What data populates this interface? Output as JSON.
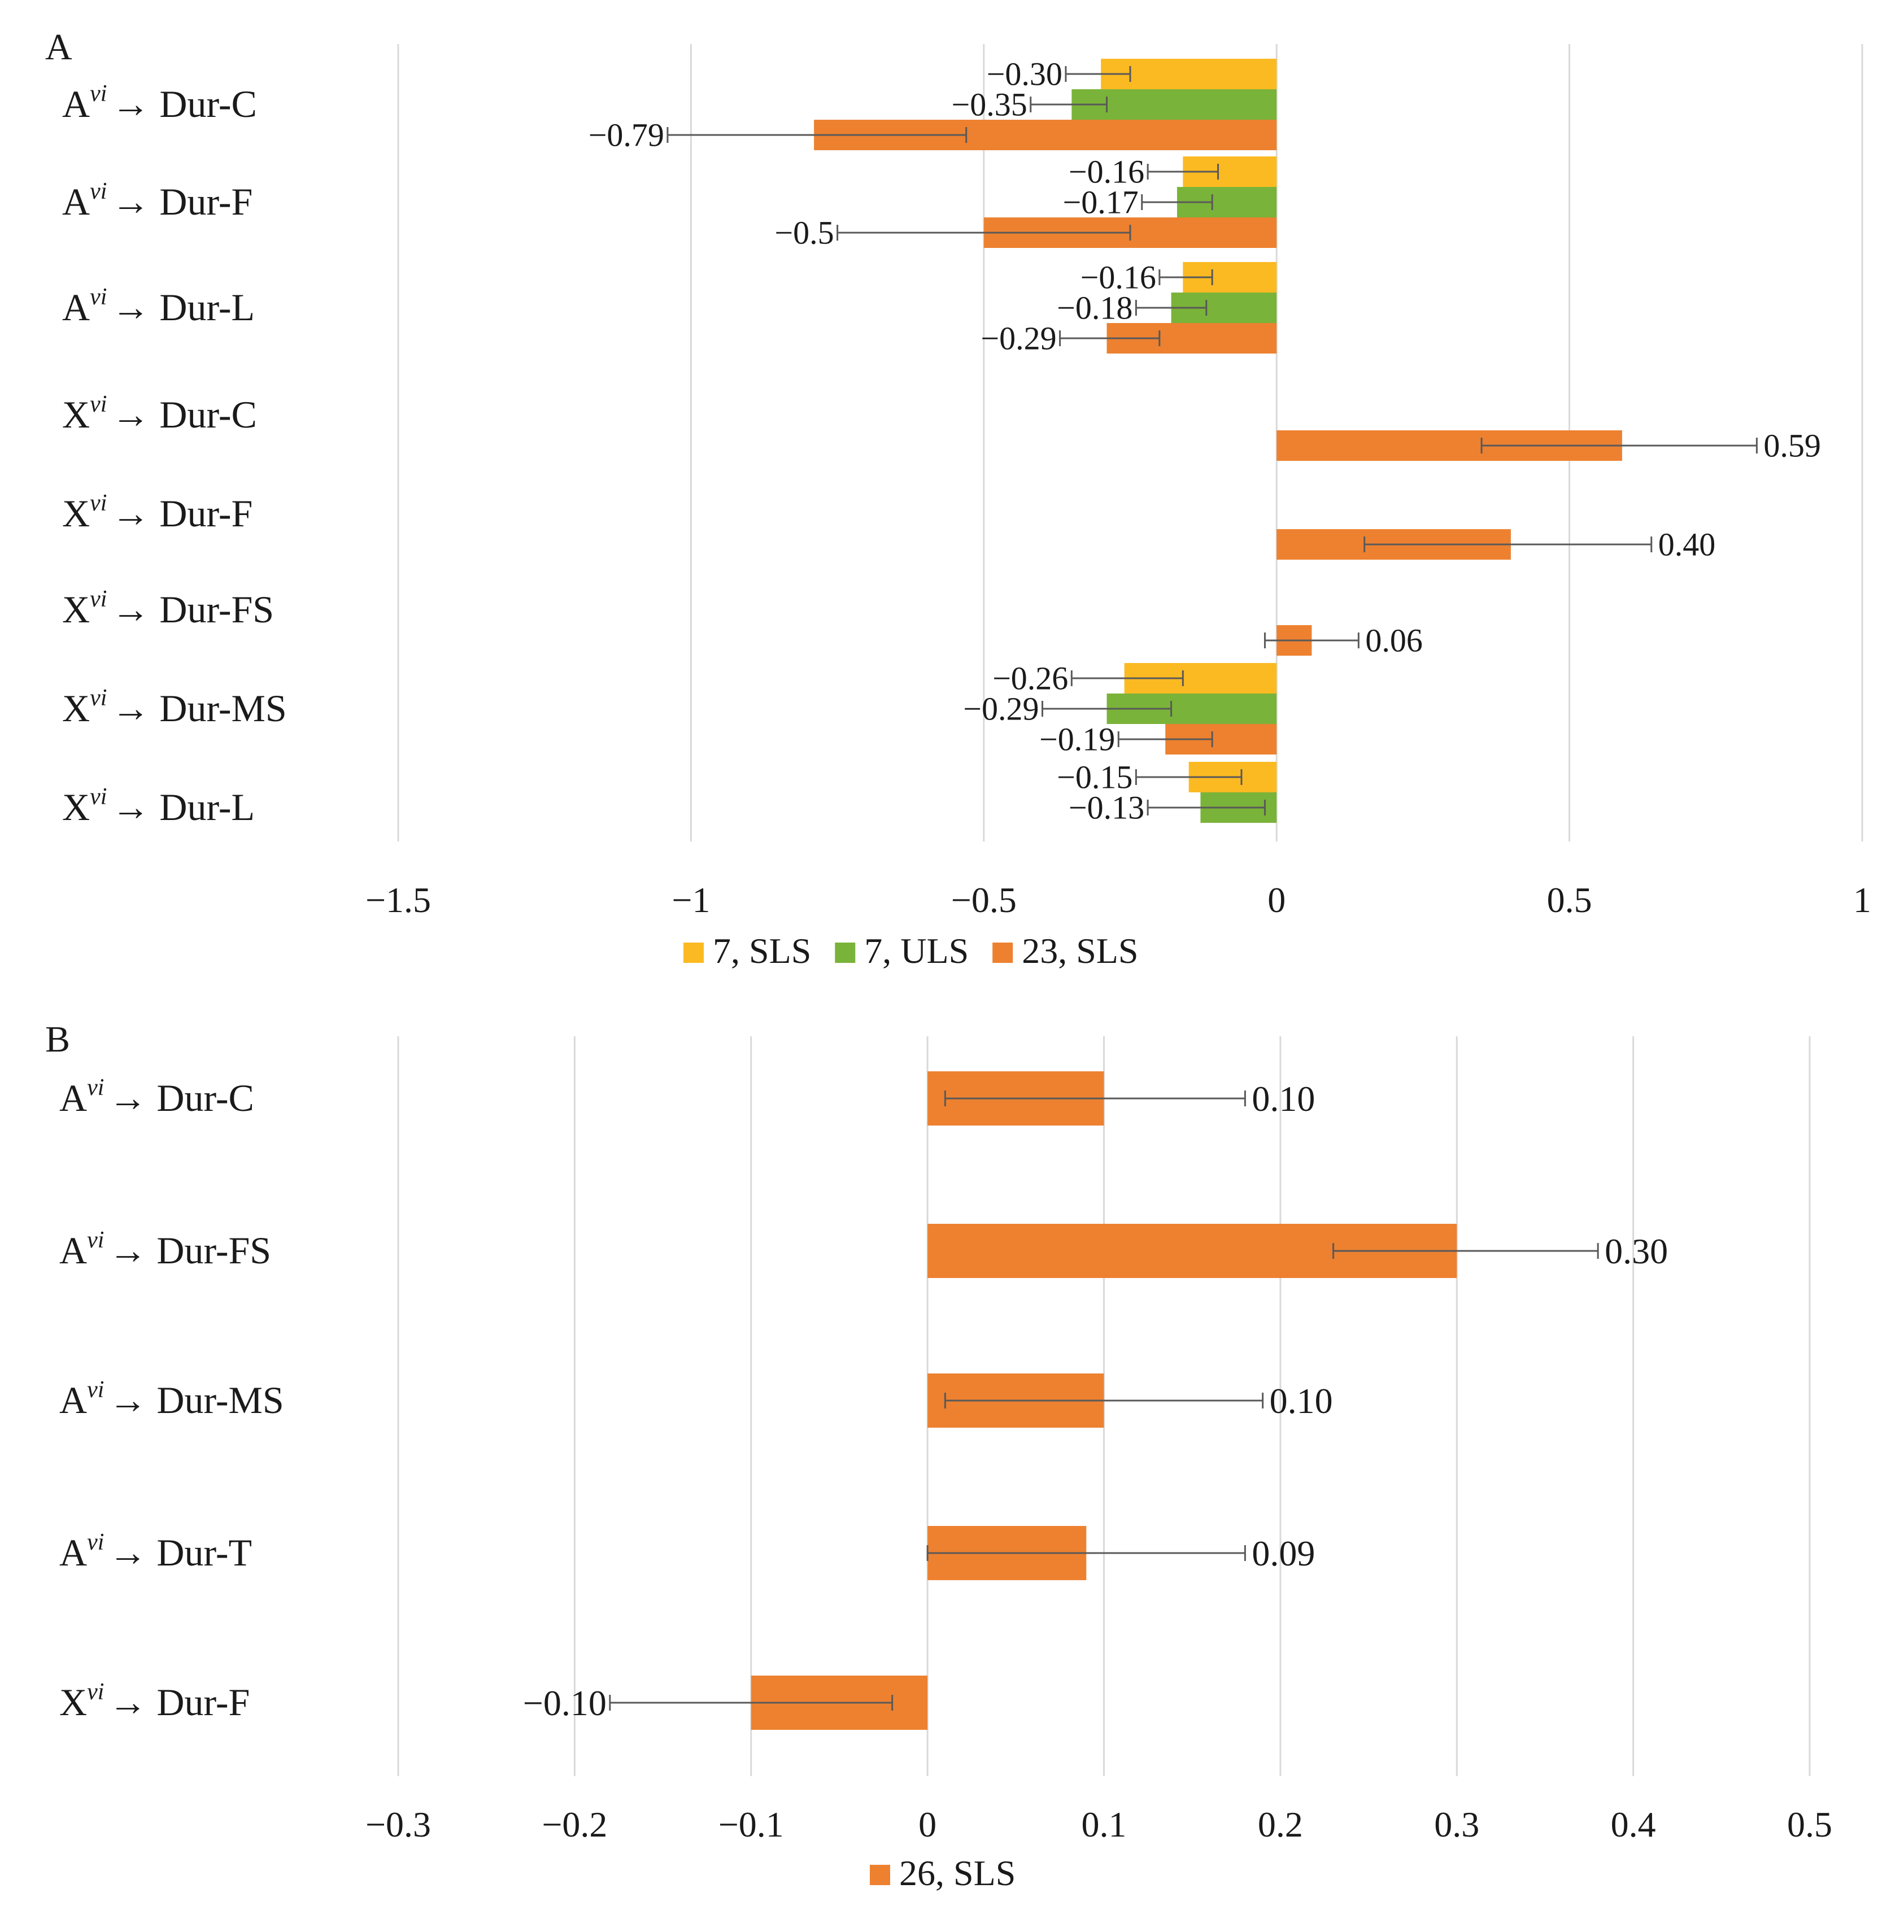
{
  "chart_data": [
    {
      "panel_label": "A",
      "type": "bar",
      "orientation": "horizontal",
      "xlim": [
        -1.5,
        1
      ],
      "x_ticks": [
        -1.5,
        -1,
        -0.5,
        0,
        0.5,
        1
      ],
      "x_tick_labels": [
        "−1.5",
        "−1",
        "−0.5",
        "0",
        "0.5",
        "1"
      ],
      "grid": true,
      "legend_position": "bottom",
      "categories": [
        {
          "base": "A",
          "sup": "vi",
          "target": "Dur-C"
        },
        {
          "base": "A",
          "sup": "vi",
          "target": "Dur-F"
        },
        {
          "base": "A",
          "sup": "vi",
          "target": "Dur-L"
        },
        {
          "base": "X",
          "sup": "vi",
          "target": "Dur-C"
        },
        {
          "base": "X",
          "sup": "vi",
          "target": "Dur-F"
        },
        {
          "base": "X",
          "sup": "vi",
          "target": "Dur-FS"
        },
        {
          "base": "X",
          "sup": "vi",
          "target": "Dur-MS"
        },
        {
          "base": "X",
          "sup": "vi",
          "target": "Dur-L"
        }
      ],
      "arrow": "→",
      "series": [
        {
          "name": "7, SLS",
          "color": "#FBBA22",
          "values": [
            -0.3,
            -0.16,
            -0.16,
            null,
            null,
            null,
            -0.26,
            -0.15
          ],
          "err_low": [
            -0.36,
            -0.22,
            -0.2,
            null,
            null,
            null,
            -0.35,
            -0.24
          ],
          "err_high": [
            -0.25,
            -0.1,
            -0.11,
            null,
            null,
            null,
            -0.16,
            -0.06
          ],
          "labels": [
            "−0.30",
            "−0.16",
            "−0.16",
            null,
            null,
            null,
            "−0.26",
            "−0.15"
          ]
        },
        {
          "name": "7, ULS",
          "color": "#7AB339",
          "values": [
            -0.35,
            -0.17,
            -0.18,
            null,
            null,
            null,
            -0.29,
            -0.13
          ],
          "err_low": [
            -0.42,
            -0.23,
            -0.24,
            null,
            null,
            null,
            -0.4,
            -0.22
          ],
          "err_high": [
            -0.29,
            -0.11,
            -0.12,
            null,
            null,
            null,
            -0.18,
            -0.02
          ],
          "labels": [
            "−0.35",
            "−0.17",
            "−0.18",
            null,
            null,
            null,
            "−0.29",
            "−0.13"
          ]
        },
        {
          "name": "23, SLS",
          "color": "#ED8130",
          "values": [
            -0.79,
            -0.5,
            -0.29,
            0.59,
            0.4,
            0.06,
            -0.19,
            null
          ],
          "err_low": [
            -1.04,
            -0.75,
            -0.37,
            0.35,
            0.15,
            -0.02,
            -0.27,
            null
          ],
          "err_high": [
            -0.53,
            -0.25,
            -0.2,
            0.82,
            0.64,
            0.14,
            -0.11,
            null
          ],
          "labels": [
            "−0.79",
            "−0.5",
            "−0.29",
            "0.59",
            "0.40",
            "0.06",
            "−0.19",
            null
          ]
        }
      ]
    },
    {
      "panel_label": "B",
      "type": "bar",
      "orientation": "horizontal",
      "xlim": [
        -0.3,
        0.5
      ],
      "x_ticks": [
        -0.3,
        -0.2,
        -0.1,
        0,
        0.1,
        0.2,
        0.3,
        0.4,
        0.5
      ],
      "x_tick_labels": [
        "−0.3",
        "−0.2",
        "−0.1",
        "0",
        "0.1",
        "0.2",
        "0.3",
        "0.4",
        "0.5"
      ],
      "grid": true,
      "legend_position": "bottom",
      "categories": [
        {
          "base": "A",
          "sup": "vi",
          "target": "Dur-C"
        },
        {
          "base": "A",
          "sup": "vi",
          "target": "Dur-FS"
        },
        {
          "base": "A",
          "sup": "vi",
          "target": "Dur-MS"
        },
        {
          "base": "A",
          "sup": "vi",
          "target": "Dur-T"
        },
        {
          "base": "X",
          "sup": "vi",
          "target": "Dur-F"
        }
      ],
      "arrow": "→",
      "series": [
        {
          "name": "26, SLS",
          "color": "#ED8130",
          "values": [
            0.1,
            0.3,
            0.1,
            0.09,
            -0.1
          ],
          "err_low": [
            0.01,
            0.23,
            0.01,
            0.0,
            -0.18
          ],
          "err_high": [
            0.18,
            0.38,
            0.19,
            0.18,
            -0.02
          ],
          "labels": [
            "0.10",
            "0.30",
            "0.10",
            "0.09",
            "−0.10"
          ]
        }
      ]
    }
  ]
}
